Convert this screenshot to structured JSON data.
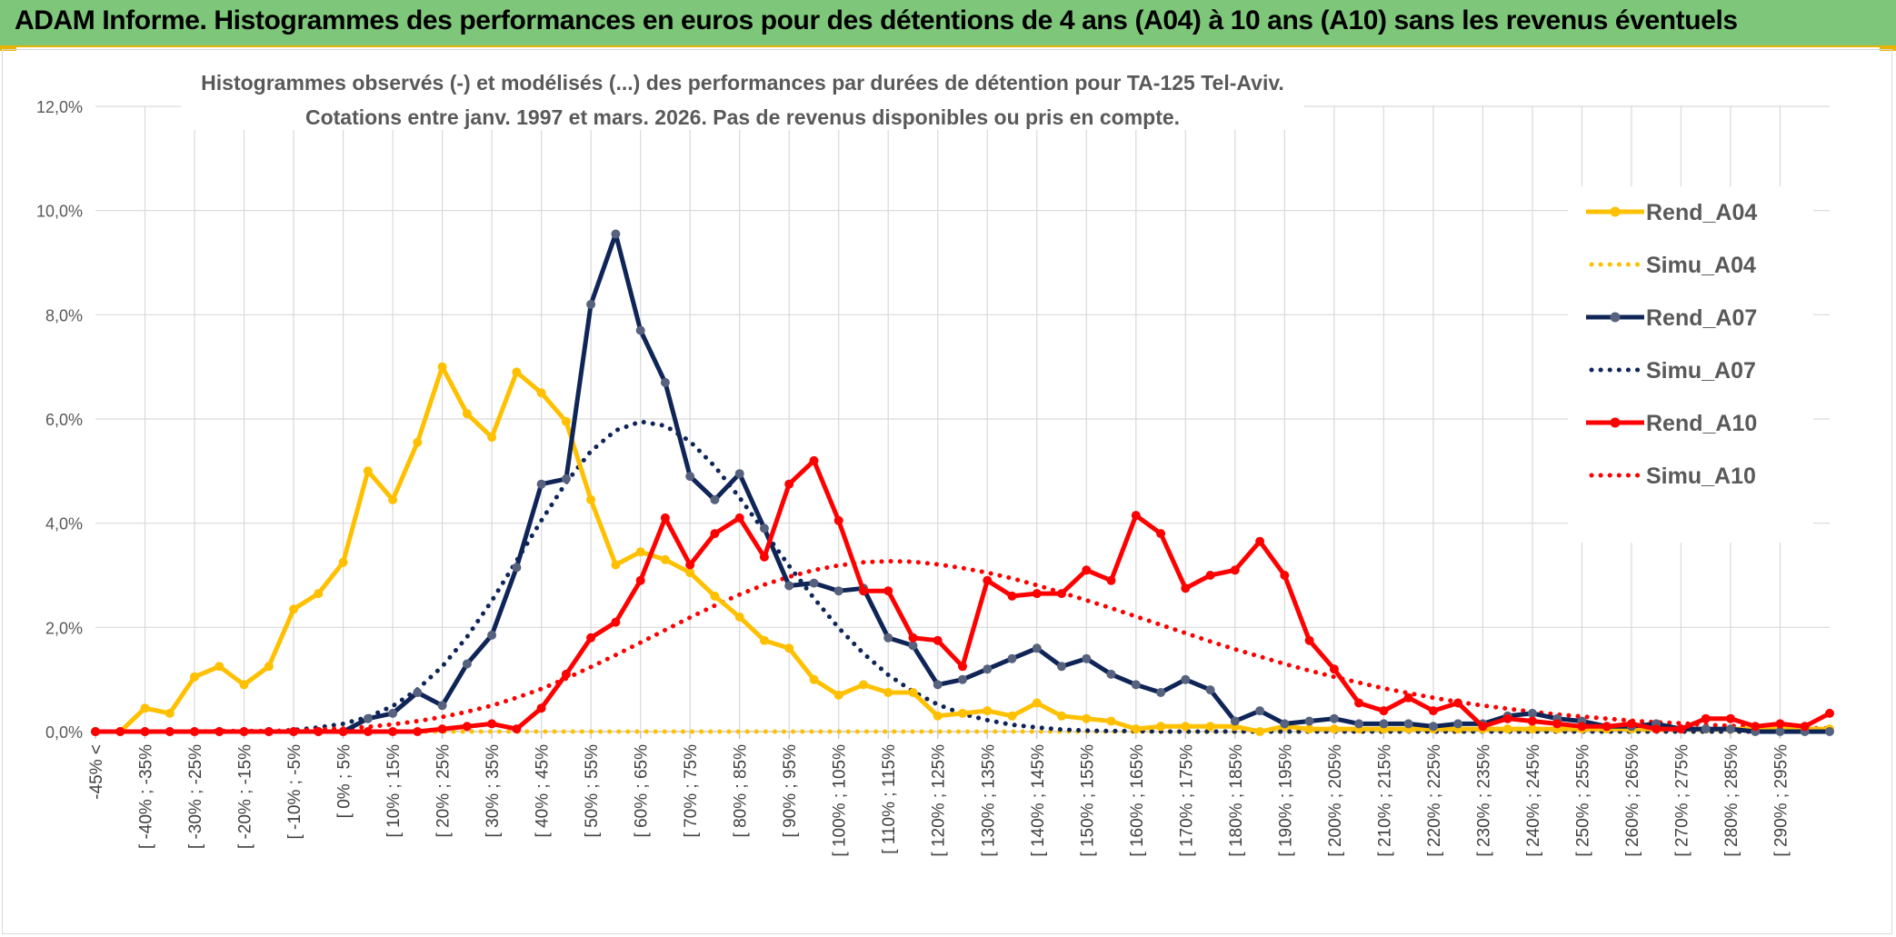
{
  "header": {
    "title": "ADAM Informe. Histogrammes des performances en euros pour des détentions de 4 ans (A04) à 10 ans (A10) sans les revenus éventuels"
  },
  "colors": {
    "header_bg": "#7ec77a",
    "accent": "#e8b400",
    "A04": "#ffc000",
    "A07": "#0f2557",
    "A10": "#ff0000"
  },
  "chart_data": {
    "type": "line",
    "title": "Histogrammes observés (-) et modélisés (...) des performances par durées de détention pour TA-125 Tel-Aviv.",
    "subtitle": "Cotations entre janv. 1997 et mars. 2026. Pas de revenus disponibles ou pris en compte.",
    "xlabel": "",
    "ylabel": "",
    "ylim": [
      0,
      12
    ],
    "y_ticks": [
      "0,0%",
      "2,0%",
      "4,0%",
      "6,0%",
      "8,0%",
      "10,0%",
      "12,0%"
    ],
    "grid": true,
    "legend_position": "right",
    "x_tick_labels": [
      "-45% <",
      "[ -40% ; -35%",
      "[ -30% ; -25%",
      "[ -20% ; -15%",
      "[ -10% ; -5%",
      "[ 0% ; 5%",
      "[ 10% ; 15%",
      "[ 20% ; 25%",
      "[ 30% ; 35%",
      "[ 40% ; 45%",
      "[ 50% ; 55%",
      "[ 60% ; 65%",
      "[ 70% ; 75%",
      "[ 80% ; 85%",
      "[ 90% ; 95%",
      "[ 100% ; 105%",
      "[ 110% ; 115%",
      "[ 120% ; 125%",
      "[ 130% ; 135%",
      "[ 140% ; 145%",
      "[ 150% ; 155%",
      "[ 160% ; 165%",
      "[ 170% ; 175%",
      "[ 180% ; 185%",
      "[ 190% ; 195%",
      "[ 200% ; 205%",
      "[ 210% ; 215%",
      "[ 220% ; 225%",
      "[ 230% ; 235%",
      "[ 240% ; 245%",
      "[ 250% ; 255%",
      "[ 260% ; 265%",
      "[ 270% ; 275%",
      "[ 280% ; 285%",
      "[ 290% ; 295%"
    ],
    "series": [
      {
        "name": "Rend_A04",
        "style": "solid",
        "color": "#ffc000",
        "values": [
          0,
          0,
          0.45,
          0.35,
          1.05,
          1.25,
          0.9,
          1.25,
          2.35,
          2.65,
          3.25,
          5.0,
          4.45,
          5.55,
          7.0,
          6.1,
          5.65,
          6.9,
          6.5,
          5.95,
          4.45,
          3.2,
          3.45,
          3.3,
          3.05,
          2.6,
          2.2,
          1.75,
          1.6,
          1.0,
          0.7,
          0.9,
          0.75,
          0.75,
          0.3,
          0.35,
          0.4,
          0.3,
          0.55,
          0.3,
          0.25,
          0.2,
          0.05,
          0.1,
          0.1,
          0.1,
          0.1,
          0.0,
          0.1,
          0.05,
          0.05,
          0.05,
          0.05,
          0.05,
          0.05,
          0.05,
          0.05,
          0.05,
          0.05,
          0.05,
          0.05,
          0.05,
          0.05,
          0.05,
          0.05,
          0.05,
          0.05,
          0.05,
          0.05,
          0.05,
          0.05
        ]
      },
      {
        "name": "Simu_A04",
        "style": "dotted",
        "color": "#ffc000",
        "values": [
          0,
          0,
          0,
          0,
          0,
          0,
          0,
          0,
          0,
          0,
          0,
          0,
          0,
          0,
          0,
          0,
          0,
          0,
          0,
          0,
          0,
          0,
          0,
          0,
          0,
          0,
          0,
          0,
          0,
          0,
          0,
          0,
          0,
          0,
          0,
          0,
          0,
          0,
          0,
          0,
          0,
          0,
          0,
          0,
          0,
          0,
          0,
          0,
          0,
          0,
          0,
          0,
          0,
          0,
          0,
          0,
          0,
          0,
          0,
          0,
          0,
          0,
          0,
          0,
          0,
          0,
          0,
          0,
          0,
          0,
          0
        ]
      },
      {
        "name": "Rend_A07",
        "style": "solid",
        "color": "#0f2557",
        "values": [
          0,
          0,
          0,
          0,
          0,
          0,
          0,
          0,
          0,
          0,
          0,
          0.25,
          0.35,
          0.75,
          0.5,
          1.3,
          1.85,
          3.15,
          4.75,
          4.85,
          8.2,
          9.55,
          7.7,
          6.7,
          4.9,
          4.45,
          4.95,
          3.9,
          2.8,
          2.85,
          2.7,
          2.75,
          1.8,
          1.65,
          0.9,
          1.0,
          1.2,
          1.4,
          1.6,
          1.25,
          1.4,
          1.1,
          0.9,
          0.75,
          1.0,
          0.8,
          0.2,
          0.4,
          0.15,
          0.2,
          0.25,
          0.15,
          0.15,
          0.15,
          0.1,
          0.15,
          0.15,
          0.3,
          0.35,
          0.25,
          0.2,
          0.1,
          0.1,
          0.15,
          0.05,
          0.05,
          0.05,
          0.0,
          0.0,
          0.0,
          0.0
        ]
      },
      {
        "name": "Simu_A07",
        "style": "dotted",
        "color": "#0f2557",
        "values": [
          0.0,
          0.0,
          0.0,
          0.0,
          0.0,
          0.0,
          0.0,
          0.0,
          0.03,
          0.08,
          0.15,
          0.28,
          0.49,
          0.81,
          1.25,
          1.82,
          2.51,
          3.28,
          4.05,
          4.78,
          5.38,
          5.78,
          5.95,
          5.87,
          5.57,
          5.09,
          4.49,
          3.84,
          3.18,
          2.56,
          1.99,
          1.5,
          1.09,
          0.77,
          0.52,
          0.34,
          0.22,
          0.13,
          0.08,
          0.04,
          0.02,
          0.01,
          0.01,
          0.0,
          0.0,
          0.0,
          0.0,
          0.0,
          0.0,
          0.0,
          0.0,
          0.0,
          0.0,
          0.0,
          0.0,
          0.0,
          0.0,
          0.0,
          0.0,
          0.0,
          0.0,
          0.0,
          0.0,
          0.0,
          0.0,
          0.0,
          0.0,
          0.0,
          0.0,
          0.0,
          0.0
        ]
      },
      {
        "name": "Rend_A10",
        "style": "solid",
        "color": "#ff0000",
        "values": [
          0,
          0,
          0,
          0,
          0,
          0,
          0,
          0,
          0,
          0,
          0,
          0.0,
          0.0,
          0.0,
          0.05,
          0.1,
          0.15,
          0.05,
          0.45,
          1.1,
          1.8,
          2.1,
          2.9,
          4.1,
          3.2,
          3.8,
          4.1,
          3.35,
          4.75,
          5.2,
          4.05,
          2.7,
          2.7,
          1.8,
          1.75,
          1.25,
          2.9,
          2.6,
          2.65,
          2.65,
          3.1,
          2.9,
          4.15,
          3.8,
          2.75,
          3.0,
          3.1,
          3.65,
          3.0,
          1.75,
          1.2,
          0.55,
          0.4,
          0.65,
          0.4,
          0.55,
          0.1,
          0.25,
          0.2,
          0.15,
          0.1,
          0.1,
          0.15,
          0.05,
          0.05,
          0.25,
          0.25,
          0.1,
          0.15,
          0.1,
          0.35
        ]
      },
      {
        "name": "Simu_A10",
        "style": "dotted",
        "color": "#ff0000",
        "values": [
          0.0,
          0.0,
          0.0,
          0.0,
          0.0,
          0.01,
          0.01,
          0.01,
          0.02,
          0.04,
          0.06,
          0.09,
          0.14,
          0.2,
          0.28,
          0.38,
          0.5,
          0.65,
          0.82,
          1.02,
          1.24,
          1.47,
          1.71,
          1.95,
          2.19,
          2.42,
          2.63,
          2.82,
          2.97,
          3.1,
          3.19,
          3.25,
          3.27,
          3.26,
          3.21,
          3.14,
          3.05,
          2.94,
          2.81,
          2.67,
          2.52,
          2.37,
          2.21,
          2.05,
          1.89,
          1.73,
          1.58,
          1.44,
          1.3,
          1.17,
          1.05,
          0.94,
          0.83,
          0.74,
          0.65,
          0.57,
          0.5,
          0.44,
          0.38,
          0.33,
          0.29,
          0.25,
          0.21,
          0.18,
          0.16,
          0.13,
          0.11,
          0.1,
          0.08,
          0.07,
          0.06
        ]
      }
    ]
  }
}
